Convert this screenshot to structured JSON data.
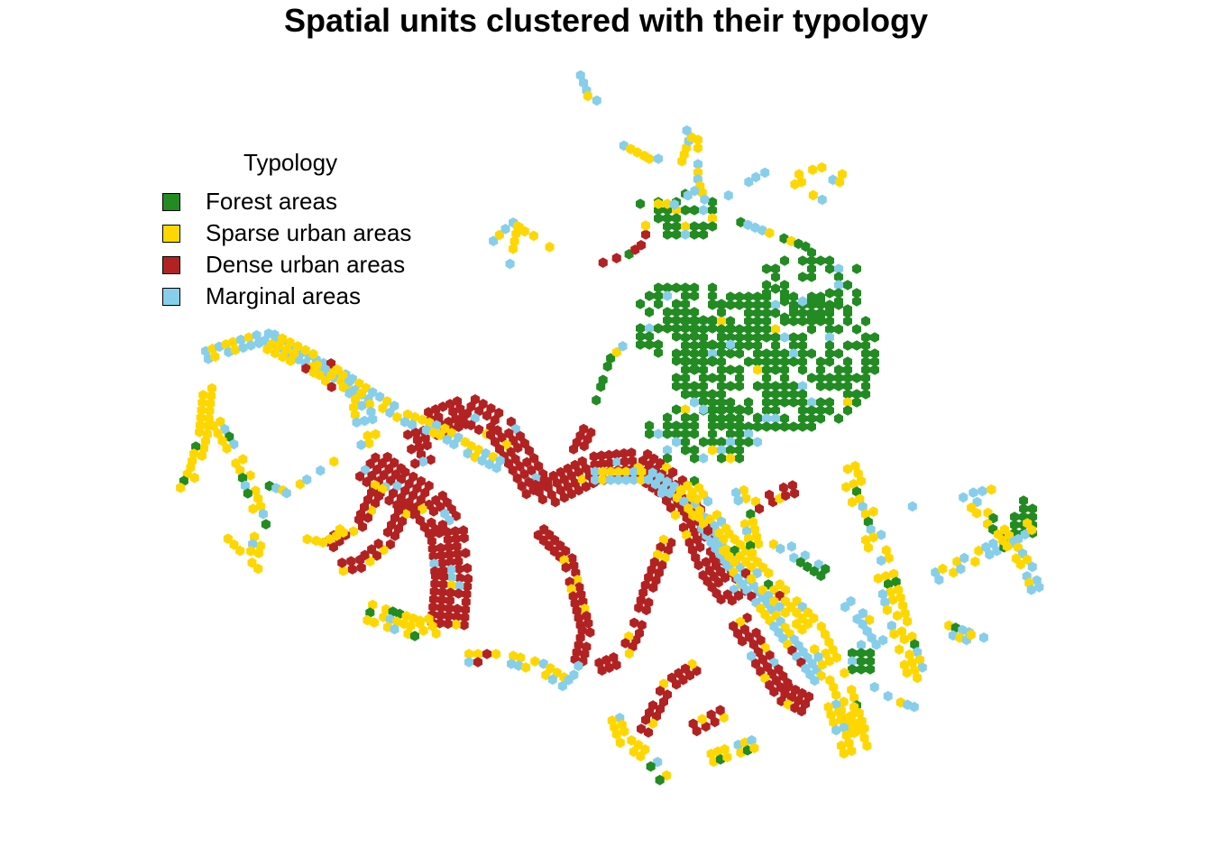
{
  "title": "Spatial units clustered with their typology",
  "legend": {
    "title": "Typology",
    "items": [
      {
        "label": "Forest areas",
        "color": "#228B22"
      },
      {
        "label": "Sparse urban areas",
        "color": "#FFD700"
      },
      {
        "label": "Dense urban areas",
        "color": "#B22222"
      },
      {
        "label": "Marginal areas",
        "color": "#87CEEB"
      }
    ]
  }
}
